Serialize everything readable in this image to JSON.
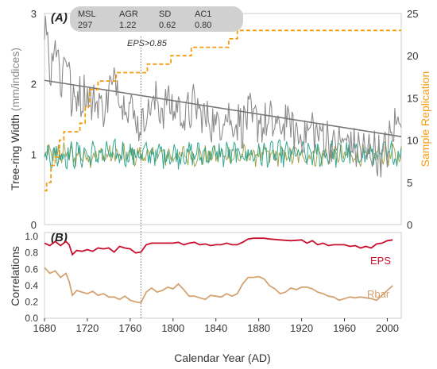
{
  "chart_data": [
    {
      "panel": "(A)",
      "type": "line",
      "xlim": [
        1680,
        2013
      ],
      "ylim": [
        0,
        3
      ],
      "ylabel_prefix": "Tree-ring Width ",
      "ylabel_unit": "(mm/indices)",
      "yticks": [
        0,
        1,
        2,
        3
      ],
      "y2label": "Sample Replication",
      "y2lim": [
        0,
        25
      ],
      "y2ticks": [
        0,
        5,
        10,
        15,
        20,
        25
      ],
      "stats_table": {
        "headers": [
          "MSL",
          "AGR",
          "SD",
          "AC1"
        ],
        "values": [
          "297",
          "1.22",
          "0.62",
          "0.80"
        ]
      },
      "annotation": {
        "text": "EPS>0.85",
        "x": 1770
      },
      "series": [
        {
          "role": "raw tree-ring width",
          "color": "#8c8c8c",
          "anchors": [
            [
              1680,
              2.8
            ],
            [
              1682,
              2.9
            ],
            [
              1684,
              2.4
            ],
            [
              1686,
              2.1
            ],
            [
              1688,
              2.5
            ],
            [
              1690,
              2.7
            ],
            [
              1693,
              2.3
            ],
            [
              1696,
              2.0
            ],
            [
              1700,
              2.5
            ],
            [
              1703,
              2.2
            ],
            [
              1706,
              1.6
            ],
            [
              1710,
              1.9
            ],
            [
              1715,
              1.8
            ],
            [
              1720,
              1.9
            ],
            [
              1725,
              1.7
            ],
            [
              1730,
              1.8
            ],
            [
              1735,
              1.6
            ],
            [
              1740,
              1.9
            ],
            [
              1745,
              2.0
            ],
            [
              1748,
              2.1
            ],
            [
              1752,
              1.7
            ],
            [
              1756,
              1.8
            ],
            [
              1760,
              1.7
            ],
            [
              1765,
              1.5
            ],
            [
              1770,
              1.4
            ],
            [
              1775,
              1.6
            ],
            [
              1780,
              1.7
            ],
            [
              1785,
              1.75
            ],
            [
              1790,
              1.6
            ],
            [
              1795,
              1.8
            ],
            [
              1800,
              1.6
            ],
            [
              1805,
              1.7
            ],
            [
              1810,
              1.5
            ],
            [
              1815,
              1.6
            ],
            [
              1820,
              1.7
            ],
            [
              1825,
              1.6
            ],
            [
              1830,
              1.5
            ],
            [
              1835,
              1.5
            ],
            [
              1840,
              1.4
            ],
            [
              1845,
              1.5
            ],
            [
              1850,
              1.6
            ],
            [
              1855,
              1.4
            ],
            [
              1860,
              1.5
            ],
            [
              1865,
              1.4
            ],
            [
              1870,
              1.6
            ],
            [
              1875,
              1.45
            ],
            [
              1880,
              1.5
            ],
            [
              1885,
              1.4
            ],
            [
              1890,
              1.45
            ],
            [
              1895,
              1.4
            ],
            [
              1900,
              1.35
            ],
            [
              1905,
              1.5
            ],
            [
              1910,
              1.4
            ],
            [
              1915,
              1.3
            ],
            [
              1920,
              1.25
            ],
            [
              1925,
              1.3
            ],
            [
              1930,
              1.4
            ],
            [
              1935,
              1.25
            ],
            [
              1940,
              1.3
            ],
            [
              1945,
              1.2
            ],
            [
              1950,
              1.1
            ],
            [
              1955,
              1.2
            ],
            [
              1960,
              1.15
            ],
            [
              1965,
              1.2
            ],
            [
              1970,
              1.05
            ],
            [
              1975,
              1.1
            ],
            [
              1980,
              1.0
            ],
            [
              1985,
              1.1
            ],
            [
              1990,
              1.0
            ],
            [
              1995,
              0.95
            ],
            [
              2000,
              1.1
            ],
            [
              2005,
              1.3
            ],
            [
              2010,
              1.5
            ],
            [
              2013,
              1.6
            ]
          ]
        },
        {
          "role": "linear trend",
          "color": "#8c8c8c",
          "points": [
            [
              1680,
              2.05
            ],
            [
              2013,
              1.25
            ]
          ]
        },
        {
          "role": "standardized index (teal)",
          "color": "#1f9e89",
          "mean": 1.0,
          "amplitude": 0.15
        },
        {
          "role": "standardized index (olive)",
          "color": "#9a9a3c",
          "mean": 0.98,
          "amplitude": 0.12
        },
        {
          "role": "sample replication (right axis)",
          "color": "#f39c12",
          "style": "dashed step",
          "steps": [
            [
              1680,
              4
            ],
            [
              1682,
              5
            ],
            [
              1686,
              7
            ],
            [
              1690,
              8
            ],
            [
              1694,
              10
            ],
            [
              1698,
              11
            ],
            [
              1713,
              12
            ],
            [
              1718,
              14
            ],
            [
              1722,
              16
            ],
            [
              1730,
              17
            ],
            [
              1747,
              18
            ],
            [
              1768,
              18
            ],
            [
              1776,
              19
            ],
            [
              1798,
              20
            ],
            [
              1817,
              21
            ],
            [
              1838,
              21
            ],
            [
              1852,
              22
            ],
            [
              1860,
              23
            ],
            [
              2013,
              23
            ]
          ]
        }
      ]
    },
    {
      "panel": "(B)",
      "type": "line",
      "xlabel": "Calendar Year (AD)",
      "xticks": [
        1680,
        1720,
        1760,
        1800,
        1840,
        1880,
        1920,
        1960,
        2000
      ],
      "xlim": [
        1680,
        2013
      ],
      "ylabel": "Correlations",
      "ylim": [
        0,
        1.05
      ],
      "yticks": [
        "0.0",
        "0.2",
        "0.4",
        "0.6",
        "0.8",
        "1.0"
      ],
      "series": [
        {
          "name": "EPS",
          "color": "#c8102e",
          "points": [
            [
              1680,
              0.92
            ],
            [
              1685,
              0.89
            ],
            [
              1690,
              0.94
            ],
            [
              1695,
              0.89
            ],
            [
              1700,
              0.94
            ],
            [
              1703,
              0.9
            ],
            [
              1706,
              0.78
            ],
            [
              1710,
              0.83
            ],
            [
              1715,
              0.82
            ],
            [
              1720,
              0.84
            ],
            [
              1725,
              0.82
            ],
            [
              1730,
              0.86
            ],
            [
              1735,
              0.85
            ],
            [
              1740,
              0.86
            ],
            [
              1745,
              0.81
            ],
            [
              1750,
              0.88
            ],
            [
              1755,
              0.86
            ],
            [
              1760,
              0.85
            ],
            [
              1765,
              0.8
            ],
            [
              1770,
              0.81
            ],
            [
              1775,
              0.9
            ],
            [
              1780,
              0.92
            ],
            [
              1790,
              0.92
            ],
            [
              1800,
              0.92
            ],
            [
              1805,
              0.93
            ],
            [
              1810,
              0.9
            ],
            [
              1815,
              0.92
            ],
            [
              1820,
              0.93
            ],
            [
              1825,
              0.9
            ],
            [
              1830,
              0.91
            ],
            [
              1835,
              0.89
            ],
            [
              1840,
              0.9
            ],
            [
              1845,
              0.9
            ],
            [
              1850,
              0.92
            ],
            [
              1855,
              0.9
            ],
            [
              1860,
              0.9
            ],
            [
              1865,
              0.93
            ],
            [
              1870,
              0.97
            ],
            [
              1875,
              0.98
            ],
            [
              1880,
              0.98
            ],
            [
              1885,
              0.98
            ],
            [
              1890,
              0.97
            ],
            [
              1900,
              0.96
            ],
            [
              1910,
              0.95
            ],
            [
              1920,
              0.96
            ],
            [
              1925,
              0.92
            ],
            [
              1930,
              0.95
            ],
            [
              1935,
              0.9
            ],
            [
              1940,
              0.92
            ],
            [
              1945,
              0.89
            ],
            [
              1950,
              0.9
            ],
            [
              1960,
              0.9
            ],
            [
              1965,
              0.88
            ],
            [
              1970,
              0.89
            ],
            [
              1975,
              0.86
            ],
            [
              1980,
              0.88
            ],
            [
              1985,
              0.86
            ],
            [
              1990,
              0.91
            ],
            [
              1995,
              0.92
            ],
            [
              2000,
              0.95
            ],
            [
              2005,
              0.96
            ]
          ]
        },
        {
          "name": "Rbar",
          "color": "#d4a373",
          "points": [
            [
              1680,
              0.62
            ],
            [
              1685,
              0.55
            ],
            [
              1690,
              0.58
            ],
            [
              1695,
              0.5
            ],
            [
              1700,
              0.55
            ],
            [
              1703,
              0.45
            ],
            [
              1706,
              0.28
            ],
            [
              1710,
              0.34
            ],
            [
              1715,
              0.32
            ],
            [
              1720,
              0.3
            ],
            [
              1725,
              0.33
            ],
            [
              1730,
              0.28
            ],
            [
              1735,
              0.3
            ],
            [
              1740,
              0.26
            ],
            [
              1745,
              0.26
            ],
            [
              1750,
              0.23
            ],
            [
              1755,
              0.27
            ],
            [
              1760,
              0.22
            ],
            [
              1765,
              0.2
            ],
            [
              1770,
              0.19
            ],
            [
              1775,
              0.32
            ],
            [
              1780,
              0.37
            ],
            [
              1785,
              0.32
            ],
            [
              1790,
              0.34
            ],
            [
              1795,
              0.38
            ],
            [
              1800,
              0.36
            ],
            [
              1805,
              0.42
            ],
            [
              1810,
              0.35
            ],
            [
              1815,
              0.27
            ],
            [
              1820,
              0.27
            ],
            [
              1825,
              0.25
            ],
            [
              1830,
              0.23
            ],
            [
              1835,
              0.28
            ],
            [
              1840,
              0.27
            ],
            [
              1845,
              0.26
            ],
            [
              1850,
              0.3
            ],
            [
              1855,
              0.27
            ],
            [
              1860,
              0.3
            ],
            [
              1865,
              0.42
            ],
            [
              1870,
              0.5
            ],
            [
              1875,
              0.5
            ],
            [
              1880,
              0.51
            ],
            [
              1885,
              0.48
            ],
            [
              1890,
              0.4
            ],
            [
              1895,
              0.36
            ],
            [
              1900,
              0.3
            ],
            [
              1905,
              0.32
            ],
            [
              1910,
              0.37
            ],
            [
              1915,
              0.35
            ],
            [
              1920,
              0.38
            ],
            [
              1925,
              0.38
            ],
            [
              1930,
              0.36
            ],
            [
              1935,
              0.32
            ],
            [
              1940,
              0.3
            ],
            [
              1945,
              0.27
            ],
            [
              1950,
              0.26
            ],
            [
              1955,
              0.22
            ],
            [
              1960,
              0.24
            ],
            [
              1965,
              0.26
            ],
            [
              1970,
              0.25
            ],
            [
              1975,
              0.26
            ],
            [
              1980,
              0.25
            ],
            [
              1985,
              0.24
            ],
            [
              1990,
              0.22
            ],
            [
              1995,
              0.28
            ],
            [
              2000,
              0.34
            ],
            [
              2005,
              0.4
            ]
          ]
        }
      ]
    }
  ]
}
